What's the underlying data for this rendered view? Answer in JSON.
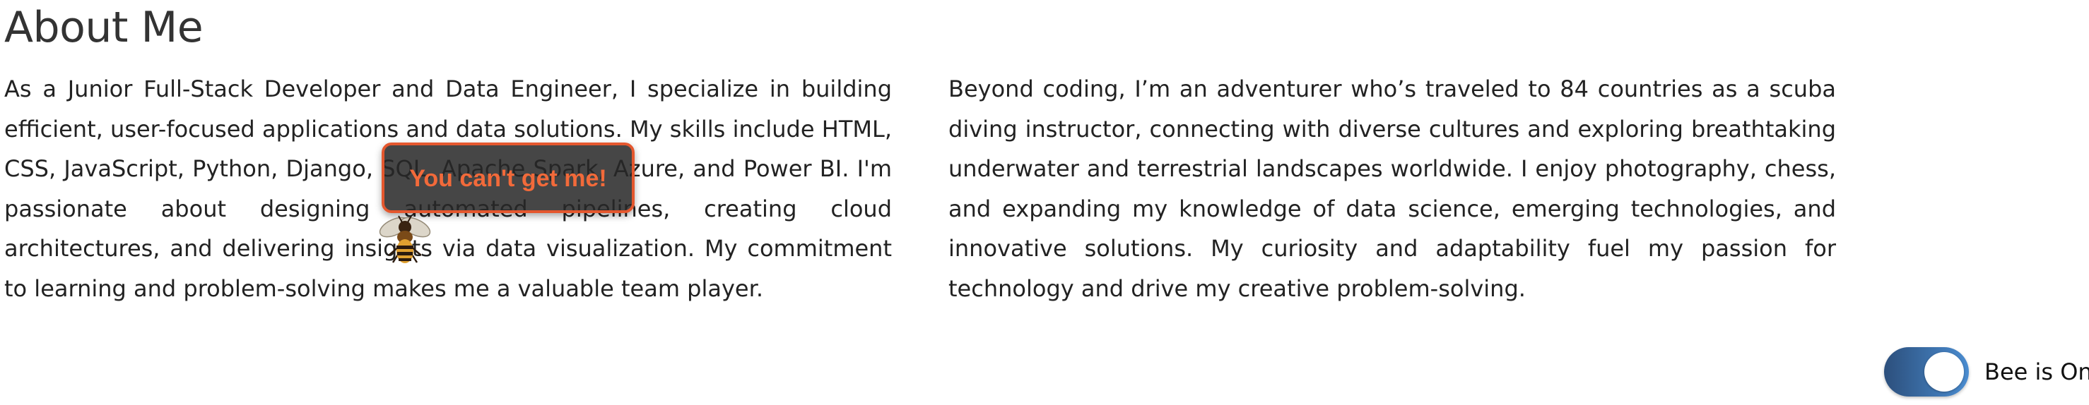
{
  "page": {
    "title": "About Me"
  },
  "about": {
    "left_paragraph": "As a Junior Full-Stack Developer and Data Engineer, I specialize in building efficient, user-focused applications and data solutions. My skills include HTML, CSS, JavaScript, Python, Django, SQL, Apache Spark, Azure, and Power BI. I'm passionate about designing automated pipelines, creating cloud architectures, and delivering insights via data visualization. My commitment to learning and problem-solving makes me a valuable team player.",
    "right_paragraph": "Beyond coding, I’m an adventurer who’s traveled to 84 countries as a scuba diving instructor, connecting with diverse cultures and exploring breathtaking underwater and terrestrial landscapes worldwide. I enjoy photography, chess, and expanding my knowledge of data science, emerging technologies, and innovative solutions. My curiosity and adaptability fuel my passion for technology and drive my creative problem-solving."
  },
  "bee": {
    "tooltip_text": "You can't get me!",
    "icon": "bee-icon",
    "toggle_label": "Bee is On",
    "toggle_on": true
  },
  "colors": {
    "tooltip_border": "#e4572e",
    "tooltip_text": "#f26a3a",
    "toggle_start": "#2c4f7c",
    "toggle_end": "#4a8cd0"
  }
}
